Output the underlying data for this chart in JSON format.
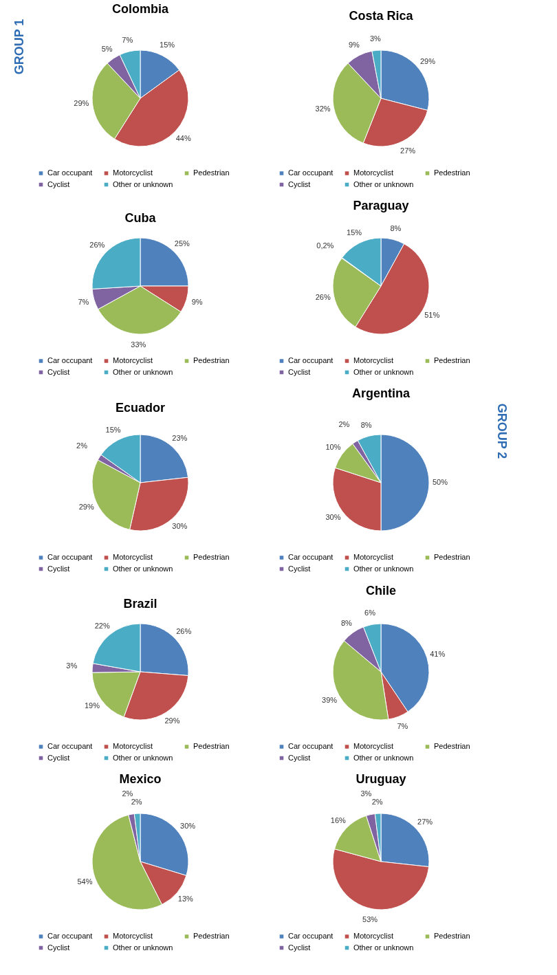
{
  "chart_data": [
    {
      "type": "pie",
      "title": "Colombia",
      "categories": [
        "Car occupant",
        "Motorcyclist",
        "Pedestrian",
        "Cyclist",
        "Other or unknown"
      ],
      "values": [
        15,
        44,
        29,
        5,
        7
      ],
      "value_labels": [
        "15%",
        "44%",
        "29%",
        "5%",
        "7%"
      ],
      "colors": [
        "#4f81bd",
        "#c0504d",
        "#9bbb59",
        "#8064a2",
        "#4bacc6"
      ],
      "legend": "bottom",
      "annotations": [
        "GROUP 1"
      ]
    },
    {
      "type": "pie",
      "title": "Costa Rica",
      "categories": [
        "Car occupant",
        "Motorcyclist",
        "Pedestrian",
        "Cyclist",
        "Other or unknown"
      ],
      "values": [
        29,
        27,
        32,
        9,
        3
      ],
      "value_labels": [
        "29%",
        "27%",
        "32%",
        "9%",
        "3%"
      ],
      "colors": [
        "#4f81bd",
        "#c0504d",
        "#9bbb59",
        "#8064a2",
        "#4bacc6"
      ],
      "legend": "bottom"
    },
    {
      "type": "pie",
      "title": "Cuba",
      "categories": [
        "Car occupant",
        "Motorcyclist",
        "Pedestrian",
        "Cyclist",
        "Other or unknown"
      ],
      "values": [
        25,
        9,
        33,
        7,
        26
      ],
      "value_labels": [
        "25%",
        "9%",
        "33%",
        "7%",
        "26%"
      ],
      "colors": [
        "#4f81bd",
        "#c0504d",
        "#9bbb59",
        "#8064a2",
        "#4bacc6"
      ],
      "legend": "bottom"
    },
    {
      "type": "pie",
      "title": "Paraguay",
      "categories": [
        "Car occupant",
        "Motorcyclist",
        "Pedestrian",
        "Cyclist",
        "Other or unknown"
      ],
      "values": [
        8,
        51,
        26,
        0.2,
        15
      ],
      "value_labels": [
        "8%",
        "51%",
        "26%",
        "0,2%",
        "15%"
      ],
      "colors": [
        "#4f81bd",
        "#c0504d",
        "#9bbb59",
        "#8064a2",
        "#4bacc6"
      ],
      "legend": "bottom"
    },
    {
      "type": "pie",
      "title": "Ecuador",
      "categories": [
        "Car occupant",
        "Motorcyclist",
        "Pedestrian",
        "Cyclist",
        "Other or unknown"
      ],
      "values": [
        23,
        30,
        29,
        2,
        15
      ],
      "value_labels": [
        "23%",
        "30%",
        "29%",
        "2%",
        "15%"
      ],
      "colors": [
        "#4f81bd",
        "#c0504d",
        "#9bbb59",
        "#8064a2",
        "#4bacc6"
      ],
      "legend": "bottom"
    },
    {
      "type": "pie",
      "title": "Argentina",
      "categories": [
        "Car occupant",
        "Motorcyclist",
        "Pedestrian",
        "Cyclist",
        "Other or unknown"
      ],
      "values": [
        50,
        30,
        10,
        2,
        8
      ],
      "value_labels": [
        "50%",
        "30%",
        "10%",
        "2%",
        "8%"
      ],
      "colors": [
        "#4f81bd",
        "#c0504d",
        "#9bbb59",
        "#8064a2",
        "#4bacc6"
      ],
      "legend": "bottom",
      "annotations": [
        "GROUP 2"
      ]
    },
    {
      "type": "pie",
      "title": "Brazil",
      "categories": [
        "Car occupant",
        "Motorcyclist",
        "Pedestrian",
        "Cyclist",
        "Other or unknown"
      ],
      "values": [
        26,
        29,
        19,
        3,
        22
      ],
      "value_labels": [
        "26%",
        "29%",
        "19%",
        "3%",
        "22%"
      ],
      "colors": [
        "#4f81bd",
        "#c0504d",
        "#9bbb59",
        "#8064a2",
        "#4bacc6"
      ],
      "legend": "bottom"
    },
    {
      "type": "pie",
      "title": "Chile",
      "categories": [
        "Car occupant",
        "Motorcyclist",
        "Pedestrian",
        "Cyclist",
        "Other or unknown"
      ],
      "values": [
        41,
        7,
        39,
        8,
        6
      ],
      "value_labels": [
        "41%",
        "7%",
        "39%",
        "8%",
        "6%"
      ],
      "colors": [
        "#4f81bd",
        "#c0504d",
        "#9bbb59",
        "#8064a2",
        "#4bacc6"
      ],
      "legend": "bottom"
    },
    {
      "type": "pie",
      "title": "Mexico",
      "categories": [
        "Car occupant",
        "Motorcyclist",
        "Pedestrian",
        "Cyclist",
        "Other or unknown"
      ],
      "values": [
        30,
        13,
        54,
        2,
        2
      ],
      "value_labels": [
        "30%",
        "13%",
        "54%",
        "2%",
        "2%"
      ],
      "colors": [
        "#4f81bd",
        "#c0504d",
        "#9bbb59",
        "#8064a2",
        "#4bacc6"
      ],
      "legend": "bottom"
    },
    {
      "type": "pie",
      "title": "Uruguay",
      "categories": [
        "Car occupant",
        "Motorcyclist",
        "Pedestrian",
        "Cyclist",
        "Other or unknown"
      ],
      "values": [
        27,
        53,
        16,
        3,
        2
      ],
      "value_labels": [
        "27%",
        "53%",
        "16%",
        "3%",
        "2%"
      ],
      "colors": [
        "#4f81bd",
        "#c0504d",
        "#9bbb59",
        "#8064a2",
        "#4bacc6"
      ],
      "legend": "bottom"
    }
  ]
}
